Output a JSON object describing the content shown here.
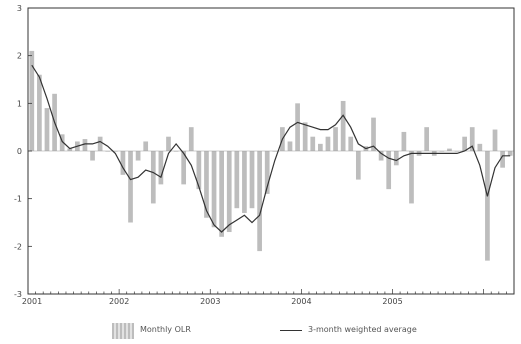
{
  "chart_data": {
    "type": "bar",
    "ylim": [
      -3,
      3
    ],
    "yticks": [
      "3",
      "2",
      "1",
      "0",
      "-1",
      "-2",
      "-3"
    ],
    "xtick_labels": [
      "2001",
      "2002",
      "2003",
      "2004",
      "2005"
    ],
    "grid": false,
    "legend_placement": "bottom",
    "x_start": "2001-01",
    "series": [
      {
        "name": "Monthly OLR",
        "kind": "bar",
        "color": "#bdbdbd",
        "values": [
          2.1,
          1.6,
          0.9,
          1.2,
          0.35,
          0.05,
          0.2,
          0.25,
          -0.2,
          0.3,
          0.0,
          0.0,
          -0.5,
          -1.5,
          -0.2,
          0.2,
          -1.1,
          -0.7,
          0.3,
          0.0,
          -0.7,
          0.5,
          -0.8,
          -1.4,
          -1.6,
          -1.8,
          -1.7,
          -1.2,
          -1.3,
          -1.2,
          -2.1,
          -0.9,
          0.0,
          0.5,
          0.2,
          1.0,
          0.6,
          0.3,
          0.15,
          0.3,
          0.5,
          1.05,
          0.3,
          -0.6,
          0.1,
          0.7,
          -0.2,
          -0.8,
          -0.3,
          0.4,
          -1.1,
          -0.1,
          0.5,
          -0.1,
          0.0,
          0.05,
          0.0,
          0.3,
          0.5,
          0.15,
          -2.3,
          0.45,
          -0.35,
          -0.1
        ]
      },
      {
        "name": "3-month weighted average",
        "kind": "line",
        "color": "#333333",
        "values": [
          1.8,
          1.55,
          1.1,
          0.6,
          0.2,
          0.05,
          0.1,
          0.15,
          0.15,
          0.2,
          0.1,
          -0.05,
          -0.35,
          -0.6,
          -0.55,
          -0.4,
          -0.45,
          -0.55,
          -0.05,
          0.15,
          -0.05,
          -0.3,
          -0.75,
          -1.25,
          -1.55,
          -1.7,
          -1.55,
          -1.45,
          -1.35,
          -1.5,
          -1.35,
          -0.75,
          -0.2,
          0.25,
          0.5,
          0.6,
          0.55,
          0.5,
          0.45,
          0.45,
          0.55,
          0.75,
          0.5,
          0.15,
          0.05,
          0.1,
          -0.05,
          -0.15,
          -0.2,
          -0.1,
          -0.05,
          -0.05,
          -0.05,
          -0.05,
          -0.05,
          -0.05,
          -0.05,
          0.0,
          0.1,
          -0.3,
          -0.95,
          -0.35,
          -0.1,
          -0.1
        ]
      }
    ]
  }
}
